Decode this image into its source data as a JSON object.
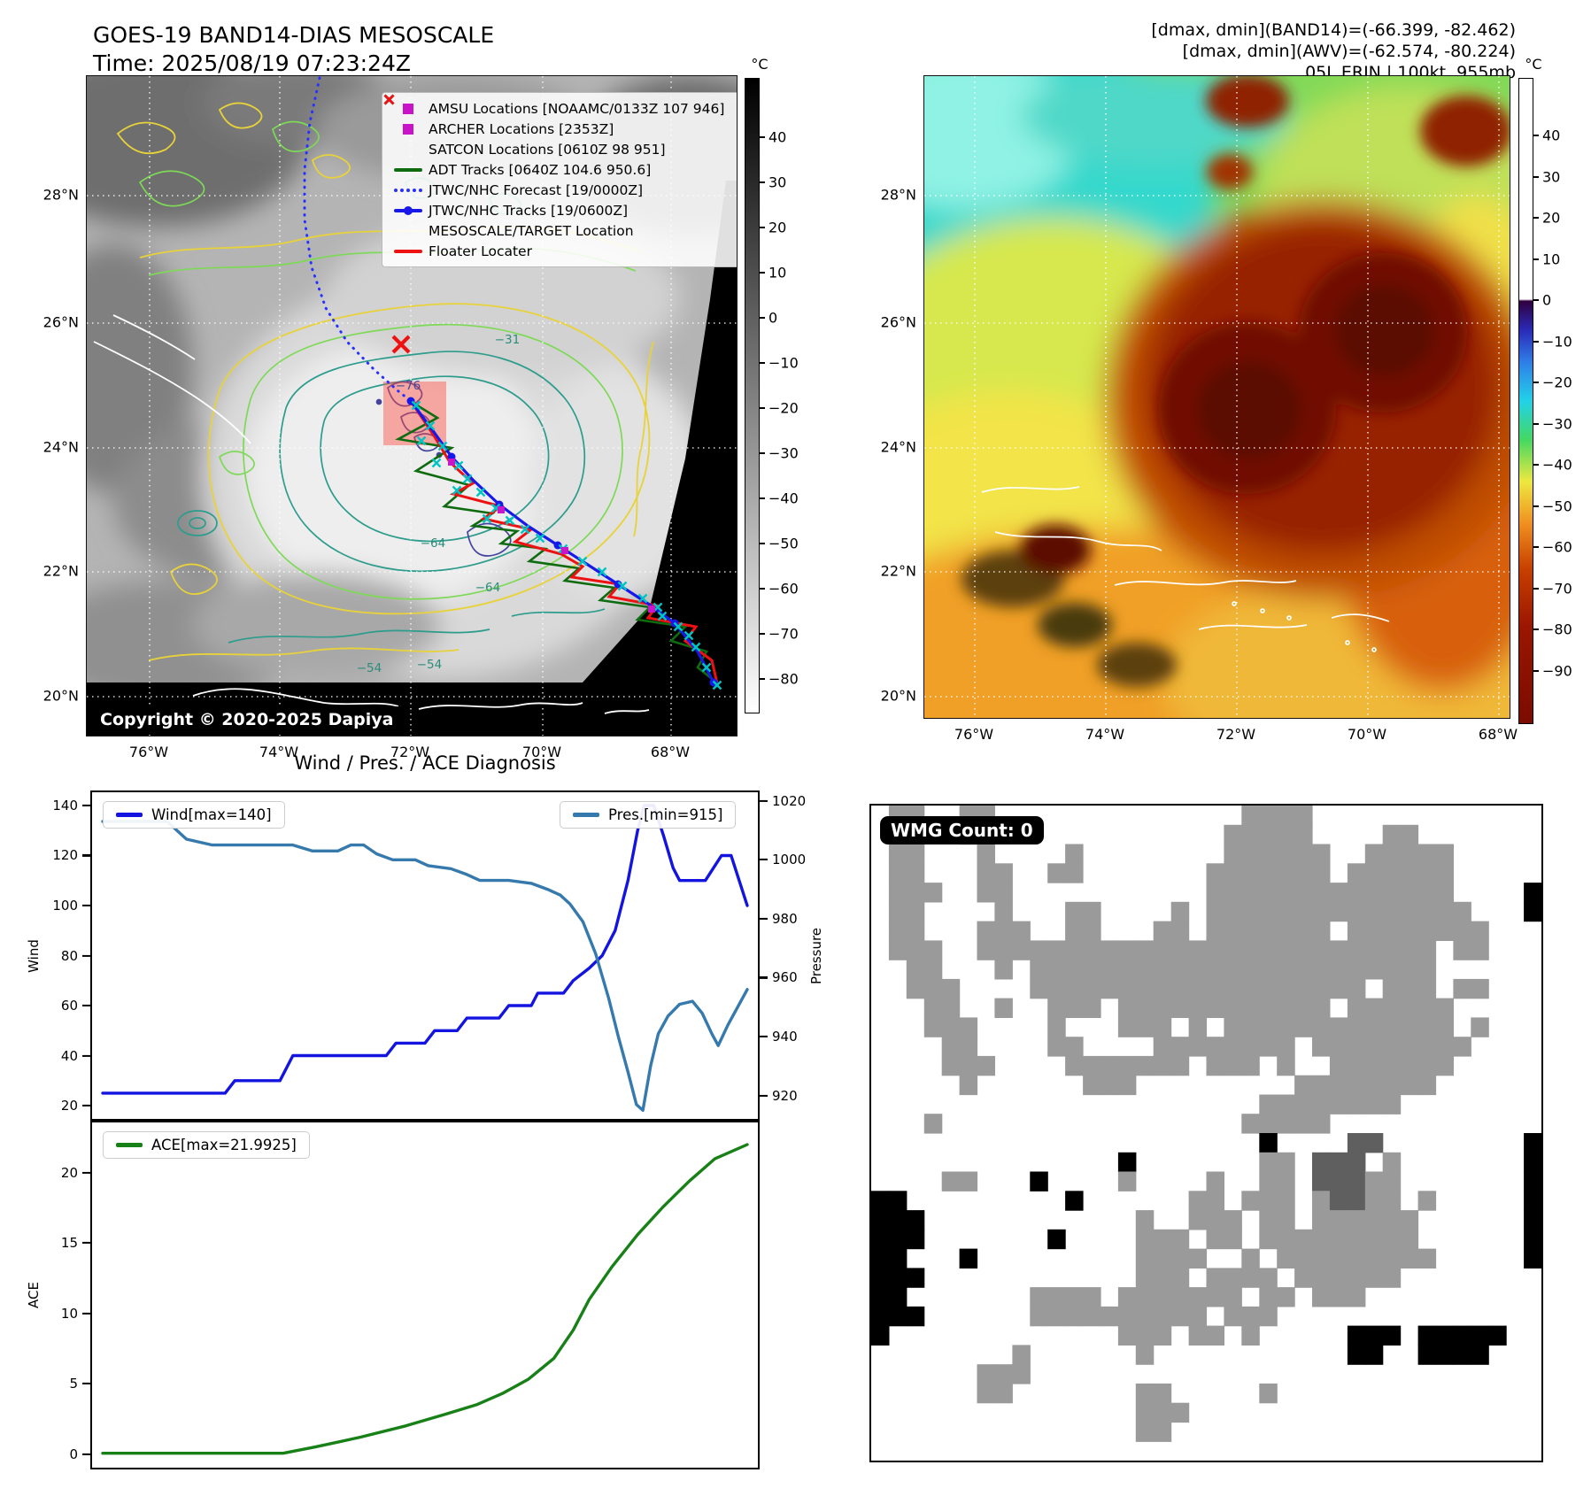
{
  "panel_tl": {
    "title_line1": "GOES-19 BAND14-DIAS MESOSCALE",
    "title_line2": "Time: 2025/08/19 07:23:24Z",
    "copyright": "Copyright © 2020-2025 Dapiya",
    "lat_ticks": [
      "28°N",
      "26°N",
      "24°N",
      "22°N",
      "20°N"
    ],
    "lon_ticks": [
      "76°W",
      "74°W",
      "72°W",
      "70°W",
      "68°W"
    ],
    "contour_labels": [
      "−76",
      "−31",
      "−64",
      "−64",
      "−54",
      "−54"
    ],
    "colorbar": {
      "unit": "°C",
      "ticks": [
        "40",
        "30",
        "20",
        "10",
        "0",
        "−10",
        "−20",
        "−30",
        "−40",
        "−50",
        "−60",
        "−70",
        "−80"
      ]
    },
    "legend": {
      "items": [
        {
          "label": "AMSU Locations [NOAAMC/0133Z 107 946]",
          "marker": "square",
          "color": "#c813c8"
        },
        {
          "label": "ARCHER Locations [2353Z]",
          "marker": "square",
          "color": "#c813c8"
        },
        {
          "label": "SATCON Locations [0610Z 98 951]",
          "marker": "x",
          "color": "#00b8b8"
        },
        {
          "label": "ADT Tracks [0640Z 104.6 950.6]",
          "marker": "line",
          "color": "#0f6b0f"
        },
        {
          "label": "JTWC/NHC Forecast [19/0000Z]",
          "marker": "dotted",
          "color": "#2830ff"
        },
        {
          "label": "JTWC/NHC Tracks [19/0600Z]",
          "marker": "line-dot",
          "color": "#1818e8"
        },
        {
          "label": "MESOSCALE/TARGET Location",
          "marker": "x",
          "color": "#ee1111"
        },
        {
          "label": "Floater Locater",
          "marker": "line",
          "color": "#ee1111"
        }
      ]
    }
  },
  "panel_tr": {
    "header_line1": "[dmax, dmin](BAND14)=(-66.399, -82.462)",
    "header_line2": "[dmax, dmin](AWV)=(-62.574, -80.224)",
    "header_line3": "05L.ERIN | 100kt, 955mb",
    "lat_ticks": [
      "28°N",
      "26°N",
      "24°N",
      "22°N",
      "20°N"
    ],
    "lon_ticks": [
      "76°W",
      "74°W",
      "72°W",
      "70°W",
      "68°W"
    ],
    "colorbar": {
      "unit": "°C",
      "ticks": [
        "40",
        "30",
        "20",
        "10",
        "0",
        "−10",
        "−20",
        "−30",
        "−40",
        "−50",
        "−60",
        "−70",
        "−80",
        "−90"
      ]
    }
  },
  "chart_data": [
    {
      "type": "line",
      "id": "wind_pressure",
      "title": "Wind / Pres. / ACE Diagnosis",
      "series": [
        {
          "name": "Wind[max=140]",
          "color": "#1414e0",
          "axis": "left",
          "points": [
            [
              0,
              25
            ],
            [
              0.19,
              25
            ],
            [
              0.205,
              30
            ],
            [
              0.275,
              30
            ],
            [
              0.295,
              40
            ],
            [
              0.44,
              40
            ],
            [
              0.455,
              45
            ],
            [
              0.5,
              45
            ],
            [
              0.515,
              50
            ],
            [
              0.55,
              50
            ],
            [
              0.565,
              55
            ],
            [
              0.615,
              55
            ],
            [
              0.63,
              60
            ],
            [
              0.665,
              60
            ],
            [
              0.675,
              65
            ],
            [
              0.715,
              65
            ],
            [
              0.73,
              70
            ],
            [
              0.755,
              75
            ],
            [
              0.775,
              80
            ],
            [
              0.795,
              90
            ],
            [
              0.815,
              110
            ],
            [
              0.83,
              130
            ],
            [
              0.84,
              140
            ],
            [
              0.855,
              140
            ],
            [
              0.87,
              128
            ],
            [
              0.885,
              115
            ],
            [
              0.895,
              110
            ],
            [
              0.935,
              110
            ],
            [
              0.95,
              116
            ],
            [
              0.96,
              120
            ],
            [
              0.975,
              120
            ],
            [
              1,
              100
            ]
          ]
        },
        {
          "name": "Pres.[min=915]",
          "color": "#3579ad",
          "axis": "right",
          "points": [
            [
              0,
              1013
            ],
            [
              0.1,
              1013
            ],
            [
              0.13,
              1007
            ],
            [
              0.17,
              1005
            ],
            [
              0.295,
              1005
            ],
            [
              0.325,
              1003
            ],
            [
              0.365,
              1003
            ],
            [
              0.385,
              1005
            ],
            [
              0.405,
              1005
            ],
            [
              0.425,
              1002
            ],
            [
              0.45,
              1000
            ],
            [
              0.485,
              1000
            ],
            [
              0.505,
              998
            ],
            [
              0.54,
              997
            ],
            [
              0.565,
              995
            ],
            [
              0.585,
              993
            ],
            [
              0.63,
              993
            ],
            [
              0.665,
              992
            ],
            [
              0.69,
              990
            ],
            [
              0.71,
              988
            ],
            [
              0.725,
              985
            ],
            [
              0.745,
              979
            ],
            [
              0.765,
              968
            ],
            [
              0.785,
              953
            ],
            [
              0.8,
              940
            ],
            [
              0.815,
              928
            ],
            [
              0.828,
              917
            ],
            [
              0.838,
              915
            ],
            [
              0.85,
              930
            ],
            [
              0.862,
              941
            ],
            [
              0.877,
              947
            ],
            [
              0.895,
              951
            ],
            [
              0.915,
              952
            ],
            [
              0.93,
              948
            ],
            [
              0.945,
              941
            ],
            [
              0.955,
              937
            ],
            [
              0.97,
              944
            ],
            [
              0.985,
              950
            ],
            [
              1,
              956
            ]
          ]
        }
      ],
      "left_axis": {
        "label": "Wind",
        "range": [
          14,
          146
        ],
        "ticks": [
          20,
          40,
          60,
          80,
          100,
          120,
          140
        ]
      },
      "right_axis": {
        "label": "Pressure",
        "range": [
          911.5,
          1023.5
        ],
        "ticks": [
          920,
          940,
          960,
          980,
          1000,
          1020
        ]
      }
    },
    {
      "type": "line",
      "id": "ace",
      "series": [
        {
          "name": "ACE[max=21.9925]",
          "color": "#178017",
          "axis": "left",
          "points": [
            [
              0,
              0.05
            ],
            [
              0.28,
              0.05
            ],
            [
              0.33,
              0.5
            ],
            [
              0.4,
              1.2
            ],
            [
              0.47,
              2.0
            ],
            [
              0.53,
              2.8
            ],
            [
              0.58,
              3.5
            ],
            [
              0.62,
              4.3
            ],
            [
              0.66,
              5.3
            ],
            [
              0.7,
              6.8
            ],
            [
              0.73,
              8.8
            ],
            [
              0.755,
              11
            ],
            [
              0.79,
              13.3
            ],
            [
              0.83,
              15.6
            ],
            [
              0.87,
              17.6
            ],
            [
              0.91,
              19.4
            ],
            [
              0.95,
              21
            ],
            [
              1,
              22
            ]
          ]
        }
      ],
      "left_axis": {
        "label": "ACE",
        "range": [
          -1.1,
          23.7
        ],
        "ticks": [
          0,
          5,
          10,
          15,
          20
        ]
      }
    },
    {
      "type": "heatmap",
      "id": "wmg",
      "badge": "WMG Count: 0",
      "palette": {
        "g": "#9a9a9a",
        "d": "#5f5f5f",
        "k": "#000000"
      },
      "rows": [
        ".gg..gg..............gggg.............",
        ".gg..gg.............ggggg....gg.......",
        ".gg...g....g........gggggg..ggggg.....",
        ".gg...gg..gg.......ggggggg.gggggg.....",
        ".ggg..gg...........gggggggggggggg....k",
        ".gg....g...gg....g.ggggggggggggggg...k",
        ".gg...ggg..gg...gg.ggggggg.gggggggg...",
        ".ggg..gggggggggggggggggggggggggg.gg...",
        "..gg...g.ggggggggggggggggggggggg......",
        "..ggg....ggggggggggggggggggg.ggg.gg...",
        "...gg..g..ggg.gggggggggggg.gggggg.....",
        "...ggg....g...ggg.g.ggggggggggggg.g...",
        "....gg....gg....gggggggg.ggggggggg....",
        "....ggg....ggggggg.ggg.g..ggggggg.....",
        ".....g......ggg.........gggggggg......",
        "......................gggggggg........",
        "...g.................ggggg............",
        "......................k....dd........k",
        "..............k.......gg.ddd.g.......k",
        "....gg...k....g....g..gg.dddgg.......k",
        "kk.........k......gg.ggg.gddgg.g.....k",
        "kkk............g..ggg.gg.gggggg......k",
        "kkk.......k....ggg.gg.ggggggggg......k",
        "kk...k.........gggg..g.ggggggggg.....k",
        "kkk............ggg.gggg.gggggg........",
        "kk.......gggg.ggggggg.gg.ggg..........",
        "kkk......gggggggggg.ggg...............",
        "k.............ggg.gg.g.....kkk.kkkkk..",
        "........g......g...........kk..kkkk...",
        "......ggg.............................",
        "......gg.......gg.....g...............",
        "...............ggg....................",
        "...............gg.....................",
        "......................................"
      ]
    }
  ]
}
